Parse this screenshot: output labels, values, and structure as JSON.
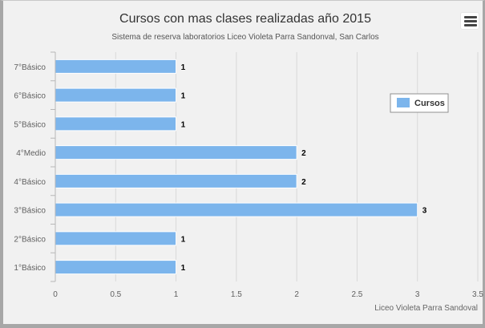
{
  "chart_data": {
    "type": "bar",
    "orientation": "horizontal",
    "title": "Cursos con mas clases realizadas año 2015",
    "subtitle": "Sistema de reserva laboratorios Liceo Violeta Parra Sandonval, San Carlos",
    "credits": "Liceo Violeta Parra Sandoval",
    "categories": [
      "7°Básico",
      "6°Básico",
      "5°Básico",
      "4°Medio",
      "4°Básico",
      "3°Básico",
      "2°Básico",
      "1°Básico"
    ],
    "series": [
      {
        "name": "Cursos",
        "color": "#7cb5ec",
        "values": [
          1,
          1,
          1,
          2,
          2,
          3,
          1,
          1
        ]
      }
    ],
    "xlim": [
      0,
      3.5
    ],
    "x_ticks": [
      "0",
      "0.5",
      "1",
      "1.5",
      "2",
      "2.5",
      "3",
      "3.5"
    ],
    "x_tick_values": [
      0,
      0.5,
      1,
      1.5,
      2,
      2.5,
      3,
      3.5
    ],
    "grid": true,
    "data_labels": true,
    "legend_position": "right"
  },
  "menu": {
    "icon": "hamburger-menu-icon"
  }
}
